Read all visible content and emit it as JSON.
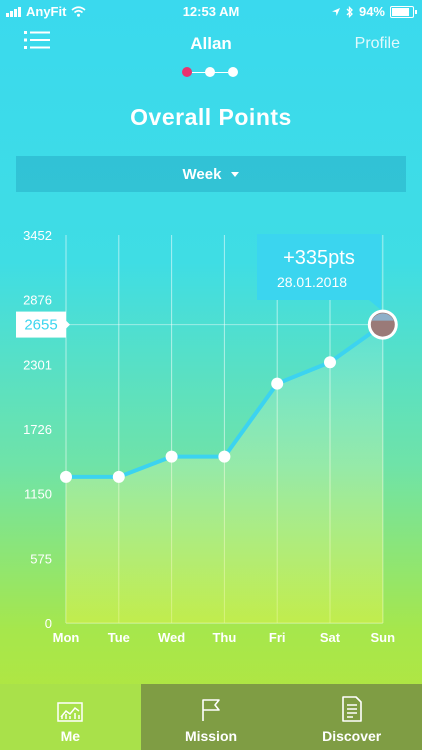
{
  "status": {
    "carrier": "AnyFit",
    "time": "12:53 AM",
    "battery": "94%"
  },
  "nav": {
    "title": "Allan",
    "profile_label": "Profile",
    "menu_icon": "list-icon"
  },
  "pager": {
    "count": 3,
    "active": 0
  },
  "page_title": "Overall Points",
  "period_selector": {
    "selected": "Week"
  },
  "colors": {
    "line": "#3cd3f0",
    "tooltip": "#3bd5ef",
    "active_dot": "#e8336f",
    "tab_active": "#a9e14a",
    "tab_inactive": "#7f9d44"
  },
  "chart_data": {
    "type": "line",
    "categories": [
      "Mon",
      "Tue",
      "Wed",
      "Thu",
      "Fri",
      "Sat",
      "Sun"
    ],
    "values": [
      1300,
      1300,
      1480,
      1480,
      2130,
      2320,
      2655
    ],
    "y_ticks": [
      "0",
      "575",
      "1150",
      "1726",
      "2301",
      "2876",
      "3452"
    ],
    "ylim": [
      0,
      3452
    ],
    "current_value_label": "2655",
    "current_value": 2655,
    "tooltip": {
      "delta": "+335pts",
      "date": "28.01.2018"
    },
    "grid": "vertical"
  },
  "tabs": [
    {
      "label": "Me",
      "icon": "chart-icon",
      "active": true
    },
    {
      "label": "Mission",
      "icon": "flag-icon",
      "active": false
    },
    {
      "label": "Discover",
      "icon": "document-icon",
      "active": false
    }
  ]
}
